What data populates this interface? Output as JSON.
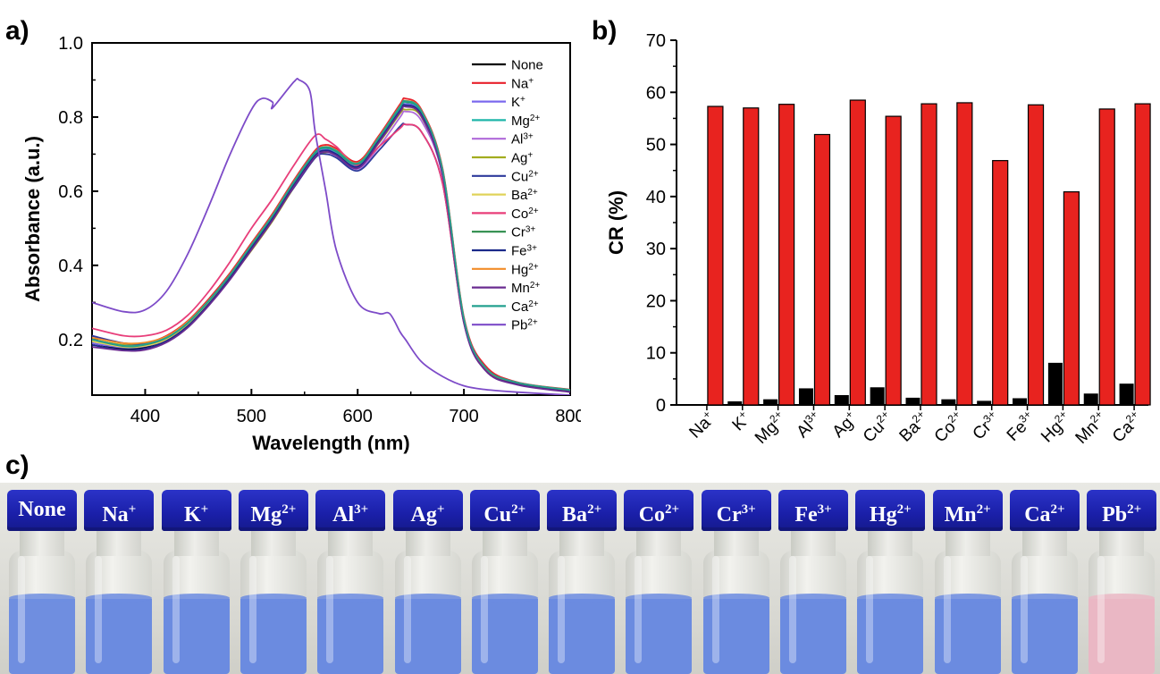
{
  "panels": {
    "a": "a)",
    "b": "b)",
    "c": "c)"
  },
  "chart_data": [
    {
      "type": "line",
      "panel": "a",
      "xlabel": "Wavelength (nm)",
      "ylabel": "Absorbance (a.u.)",
      "xlim": [
        350,
        800
      ],
      "ylim": [
        0.05,
        1.0
      ],
      "x_ticks": [
        400,
        500,
        600,
        700,
        800
      ],
      "y_ticks": [
        0.2,
        0.4,
        0.6,
        0.8,
        1.0
      ],
      "y_tick_labels": [
        "0.2",
        "0.4",
        "0.6",
        "0.8",
        "1.0"
      ],
      "legend_position": "top-right",
      "x": [
        350,
        380,
        400,
        420,
        440,
        460,
        480,
        500,
        520,
        540,
        560,
        570,
        580,
        600,
        620,
        640,
        645,
        660,
        680,
        700,
        720,
        750,
        800
      ],
      "series": [
        {
          "name": "None",
          "ion": "None",
          "sup": "",
          "color": "#000000",
          "values": [
            0.19,
            0.175,
            0.18,
            0.2,
            0.24,
            0.3,
            0.37,
            0.45,
            0.53,
            0.62,
            0.7,
            0.715,
            0.705,
            0.67,
            0.74,
            0.82,
            0.835,
            0.81,
            0.65,
            0.25,
            0.12,
            0.08,
            0.06
          ]
        },
        {
          "name": "Na+",
          "ion": "Na",
          "sup": "+",
          "color": "#e8212b",
          "values": [
            0.2,
            0.185,
            0.19,
            0.21,
            0.25,
            0.31,
            0.38,
            0.46,
            0.54,
            0.63,
            0.71,
            0.725,
            0.715,
            0.68,
            0.75,
            0.835,
            0.85,
            0.82,
            0.66,
            0.26,
            0.13,
            0.085,
            0.065
          ]
        },
        {
          "name": "K+",
          "ion": "K",
          "sup": "+",
          "color": "#7b68ee",
          "values": [
            0.19,
            0.178,
            0.182,
            0.2,
            0.24,
            0.3,
            0.37,
            0.45,
            0.53,
            0.62,
            0.7,
            0.712,
            0.702,
            0.668,
            0.738,
            0.82,
            0.835,
            0.808,
            0.648,
            0.25,
            0.12,
            0.08,
            0.06
          ]
        },
        {
          "name": "Mg2+",
          "ion": "Mg",
          "sup": "2+",
          "color": "#1fb5a8",
          "values": [
            0.2,
            0.18,
            0.184,
            0.202,
            0.242,
            0.302,
            0.372,
            0.452,
            0.532,
            0.622,
            0.702,
            0.716,
            0.706,
            0.672,
            0.742,
            0.825,
            0.84,
            0.812,
            0.652,
            0.252,
            0.122,
            0.082,
            0.062
          ]
        },
        {
          "name": "Al3+",
          "ion": "Al",
          "sup": "3+",
          "color": "#b06ad9",
          "values": [
            0.21,
            0.19,
            0.19,
            0.205,
            0.245,
            0.3,
            0.37,
            0.45,
            0.53,
            0.61,
            0.69,
            0.705,
            0.695,
            0.66,
            0.72,
            0.8,
            0.815,
            0.79,
            0.64,
            0.25,
            0.12,
            0.08,
            0.06
          ]
        },
        {
          "name": "Ag+",
          "ion": "Ag",
          "sup": "+",
          "color": "#a3ad1f",
          "values": [
            0.2,
            0.185,
            0.188,
            0.205,
            0.245,
            0.3,
            0.365,
            0.44,
            0.52,
            0.61,
            0.69,
            0.705,
            0.7,
            0.665,
            0.73,
            0.81,
            0.82,
            0.8,
            0.645,
            0.25,
            0.12,
            0.08,
            0.06
          ]
        },
        {
          "name": "Cu2+",
          "ion": "Cu",
          "sup": "2+",
          "color": "#2e3a9c",
          "values": [
            0.21,
            0.19,
            0.19,
            0.205,
            0.245,
            0.3,
            0.37,
            0.45,
            0.53,
            0.61,
            0.69,
            0.7,
            0.69,
            0.655,
            0.71,
            0.775,
            0.78,
            0.76,
            0.62,
            0.245,
            0.12,
            0.08,
            0.06
          ]
        },
        {
          "name": "Ba2+",
          "ion": "Ba",
          "sup": "2+",
          "color": "#e0d35a",
          "values": [
            0.195,
            0.18,
            0.183,
            0.2,
            0.24,
            0.298,
            0.366,
            0.444,
            0.524,
            0.614,
            0.694,
            0.708,
            0.698,
            0.664,
            0.734,
            0.815,
            0.83,
            0.803,
            0.645,
            0.25,
            0.12,
            0.08,
            0.06
          ]
        },
        {
          "name": "Co2+",
          "ion": "Co",
          "sup": "2+",
          "color": "#e83e7a",
          "values": [
            0.23,
            0.21,
            0.21,
            0.225,
            0.265,
            0.33,
            0.41,
            0.5,
            0.58,
            0.67,
            0.75,
            0.74,
            0.72,
            0.67,
            0.72,
            0.77,
            0.78,
            0.76,
            0.62,
            0.245,
            0.12,
            0.08,
            0.06
          ]
        },
        {
          "name": "Cr3+",
          "ion": "Cr",
          "sup": "3+",
          "color": "#2c8c4a",
          "values": [
            0.2,
            0.182,
            0.186,
            0.204,
            0.244,
            0.304,
            0.374,
            0.454,
            0.534,
            0.624,
            0.704,
            0.718,
            0.708,
            0.674,
            0.744,
            0.828,
            0.842,
            0.815,
            0.655,
            0.255,
            0.124,
            0.083,
            0.063
          ]
        },
        {
          "name": "Fe3+",
          "ion": "Fe",
          "sup": "3+",
          "color": "#1b2a8a",
          "values": [
            0.185,
            0.172,
            0.176,
            0.196,
            0.236,
            0.296,
            0.366,
            0.446,
            0.526,
            0.616,
            0.696,
            0.71,
            0.7,
            0.666,
            0.736,
            0.818,
            0.832,
            0.806,
            0.646,
            0.248,
            0.118,
            0.079,
            0.059
          ]
        },
        {
          "name": "Hg2+",
          "ion": "Hg",
          "sup": "2+",
          "color": "#f28c28",
          "values": [
            0.205,
            0.19,
            0.192,
            0.208,
            0.248,
            0.306,
            0.376,
            0.456,
            0.536,
            0.626,
            0.706,
            0.72,
            0.71,
            0.676,
            0.746,
            0.83,
            0.844,
            0.817,
            0.657,
            0.256,
            0.124,
            0.084,
            0.064
          ]
        },
        {
          "name": "Mn2+",
          "ion": "Mn",
          "sup": "2+",
          "color": "#6a2c91",
          "values": [
            0.18,
            0.17,
            0.172,
            0.192,
            0.232,
            0.292,
            0.362,
            0.442,
            0.522,
            0.612,
            0.692,
            0.706,
            0.696,
            0.662,
            0.732,
            0.814,
            0.828,
            0.802,
            0.642,
            0.246,
            0.117,
            0.078,
            0.058
          ]
        },
        {
          "name": "Ca2+",
          "ion": "Ca",
          "sup": "2+",
          "color": "#23a08f",
          "values": [
            0.2,
            0.183,
            0.187,
            0.205,
            0.245,
            0.305,
            0.375,
            0.455,
            0.535,
            0.625,
            0.705,
            0.719,
            0.709,
            0.675,
            0.745,
            0.829,
            0.843,
            0.816,
            0.656,
            0.256,
            0.125,
            0.084,
            0.064
          ]
        },
        {
          "name": "Pb2+",
          "ion": "Pb",
          "sup": "2+",
          "color": "#7d4bc8",
          "values": [
            0.3,
            0.275,
            0.28,
            0.33,
            0.43,
            0.56,
            0.7,
            0.82,
            0.84,
            0.895,
            0.76,
            0.6,
            0.44,
            0.3,
            0.27,
            0.22,
            0.2,
            0.14,
            0.1,
            0.075,
            0.065,
            0.058,
            0.05
          ]
        }
      ],
      "extra_points": {
        "Pb2+": [
          [
            510,
            0.85
          ],
          [
            520,
            0.825
          ],
          [
            545,
            0.9
          ],
          [
            555,
            0.87
          ],
          [
            630,
            0.27
          ]
        ]
      }
    },
    {
      "type": "bar",
      "panel": "b",
      "ylabel": "CR (%)",
      "ylim": [
        0,
        70
      ],
      "y_ticks": [
        0,
        10,
        20,
        30,
        40,
        50,
        60,
        70
      ],
      "y_tick_labels": [
        "0",
        "10",
        "20",
        "30",
        "40",
        "50",
        "60",
        "70"
      ],
      "categories": [
        {
          "ion": "Na",
          "sup": "+"
        },
        {
          "ion": "K",
          "sup": "+"
        },
        {
          "ion": "Mg",
          "sup": "2+"
        },
        {
          "ion": "Al",
          "sup": "3+"
        },
        {
          "ion": "Ag",
          "sup": "+"
        },
        {
          "ion": "Cu",
          "sup": "2+"
        },
        {
          "ion": "Ba",
          "sup": "2+"
        },
        {
          "ion": "Co",
          "sup": "2+"
        },
        {
          "ion": "Cr",
          "sup": "3+"
        },
        {
          "ion": "Fe",
          "sup": "3+"
        },
        {
          "ion": "Hg",
          "sup": "2+"
        },
        {
          "ion": "Mn",
          "sup": "2+"
        },
        {
          "ion": "Ca",
          "sup": "2+"
        }
      ],
      "series": [
        {
          "color": "#000000",
          "values": [
            0,
            0.6,
            1.0,
            3.1,
            1.8,
            3.3,
            1.3,
            1.0,
            0.7,
            1.2,
            8.0,
            2.1,
            4.0
          ]
        },
        {
          "color": "#e8231f",
          "values": [
            57.3,
            57.0,
            57.7,
            51.9,
            58.5,
            55.4,
            57.8,
            58.0,
            46.9,
            57.6,
            40.9,
            56.8,
            57.8
          ]
        }
      ]
    }
  ],
  "vials": [
    {
      "label": "None",
      "ion": "None",
      "sup": "",
      "liquid": "#6f8ee0"
    },
    {
      "label": "Na+",
      "ion": "Na",
      "sup": "+",
      "liquid": "#6b8be0"
    },
    {
      "label": "K+",
      "ion": "K",
      "sup": "+",
      "liquid": "#6b8be0"
    },
    {
      "label": "Mg2+",
      "ion": "Mg",
      "sup": "2+",
      "liquid": "#6b8be0"
    },
    {
      "label": "Al3+",
      "ion": "Al",
      "sup": "3+",
      "liquid": "#6b8be0"
    },
    {
      "label": "Ag+",
      "ion": "Ag",
      "sup": "+",
      "liquid": "#6b8be0"
    },
    {
      "label": "Cu2+",
      "ion": "Cu",
      "sup": "2+",
      "liquid": "#6b8be0"
    },
    {
      "label": "Ba2+",
      "ion": "Ba",
      "sup": "2+",
      "liquid": "#6b8be0"
    },
    {
      "label": "Co2+",
      "ion": "Co",
      "sup": "2+",
      "liquid": "#6b8be0"
    },
    {
      "label": "Cr3+",
      "ion": "Cr",
      "sup": "3+",
      "liquid": "#6b8be0"
    },
    {
      "label": "Fe3+",
      "ion": "Fe",
      "sup": "3+",
      "liquid": "#6b8be0"
    },
    {
      "label": "Hg2+",
      "ion": "Hg",
      "sup": "2+",
      "liquid": "#6b8be0"
    },
    {
      "label": "Mn2+",
      "ion": "Mn",
      "sup": "2+",
      "liquid": "#6b8be0"
    },
    {
      "label": "Ca2+",
      "ion": "Ca",
      "sup": "2+",
      "liquid": "#6b8be0"
    },
    {
      "label": "Pb2+",
      "ion": "Pb",
      "sup": "2+",
      "liquid": "#eab7c4"
    }
  ]
}
